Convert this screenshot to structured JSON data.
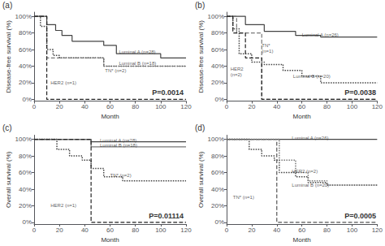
{
  "chart_data": [
    {
      "type": "line",
      "title": "(a)",
      "xlabel": "Month",
      "ylabel": "Disease-free survival (%)",
      "xlim": [
        0,
        120
      ],
      "ylim": [
        -2,
        105
      ],
      "xticks": [
        0,
        20,
        40,
        60,
        80,
        100,
        120
      ],
      "yticks": [
        {
          "value": 0,
          "label": "0%"
        },
        {
          "value": 20,
          "label": "20%"
        },
        {
          "value": 40,
          "label": "40%"
        },
        {
          "value": 60,
          "label": "60%"
        },
        {
          "value": 80,
          "label": "80%"
        },
        {
          "value": 100,
          "label": "100%"
        }
      ],
      "grid": false,
      "series": [
        {
          "color": "#444444",
          "line_style": "solid",
          "x": [
            0,
            10,
            10,
            17,
            17,
            22,
            22,
            30,
            30,
            55,
            55,
            65,
            65,
            100,
            100,
            120
          ],
          "values": [
            100,
            100,
            90,
            90,
            83,
            83,
            77,
            77,
            70,
            70,
            65,
            65,
            55,
            55,
            50,
            50
          ]
        },
        {
          "color": "#444444",
          "line_style": "dotted",
          "x": [
            0,
            5,
            5,
            10,
            10,
            15,
            15,
            20,
            20,
            55,
            55,
            120
          ],
          "values": [
            100,
            100,
            88,
            88,
            60,
            60,
            53,
            53,
            50,
            50,
            40,
            40
          ]
        },
        {
          "color": "#777777",
          "line_style": "dashed",
          "x": [
            0,
            10,
            10,
            55,
            55,
            120
          ],
          "values": [
            100,
            100,
            50,
            50,
            40,
            40
          ]
        },
        {
          "color": "#222222",
          "line_style": "dashed",
          "x": [
            0,
            10,
            10,
            120
          ],
          "values": [
            100,
            100,
            0,
            0
          ]
        }
      ],
      "annotations": [
        {
          "text": "Luminal A (n=28)",
          "x": 67,
          "y": 57
        },
        {
          "text": "Luminal B (n=18)",
          "x": 67,
          "y": 43
        },
        {
          "text": "TN* (n=2)",
          "x": 56,
          "y": 35
        },
        {
          "text": "HER2 (n=1)",
          "x": 13,
          "y": 20
        },
        {
          "text": "P=0.0014"
        }
      ]
    },
    {
      "type": "line",
      "title": "(b)",
      "xlabel": "Month",
      "ylabel": "Disease-free survival (%)",
      "xlim": [
        0,
        120
      ],
      "ylim": [
        -2,
        105
      ],
      "xticks": [
        0,
        20,
        40,
        60,
        80,
        100,
        120
      ],
      "yticks": [
        {
          "value": 0,
          "label": "0%"
        },
        {
          "value": 20,
          "label": "20%"
        },
        {
          "value": 40,
          "label": "40%"
        },
        {
          "value": 60,
          "label": "60%"
        },
        {
          "value": 80,
          "label": "80%"
        },
        {
          "value": 100,
          "label": "100%"
        }
      ],
      "grid": false,
      "series": [
        {
          "color": "#444444",
          "line_style": "solid",
          "x": [
            0,
            15,
            15,
            30,
            30,
            55,
            55,
            75,
            75,
            120
          ],
          "values": [
            100,
            100,
            90,
            90,
            82,
            82,
            77,
            77,
            75,
            75
          ]
        },
        {
          "color": "#444444",
          "line_style": "dotted",
          "x": [
            0,
            5,
            5,
            10,
            10,
            20,
            20,
            30,
            30,
            45,
            45,
            60,
            60,
            75,
            75,
            120
          ],
          "values": [
            100,
            100,
            85,
            85,
            55,
            55,
            45,
            45,
            42,
            42,
            35,
            35,
            28,
            28,
            20,
            20
          ]
        },
        {
          "color": "#777777",
          "line_style": "dashed",
          "x": [
            0,
            8,
            8,
            28,
            28,
            120
          ],
          "values": [
            100,
            100,
            80,
            80,
            0,
            0
          ]
        },
        {
          "color": "#222222",
          "line_style": "dashed",
          "x": [
            0,
            5,
            5,
            15,
            15,
            28,
            28,
            120
          ],
          "values": [
            100,
            100,
            80,
            80,
            50,
            50,
            0,
            0
          ]
        }
      ],
      "annotations": [
        {
          "text": "Luminal A (n=26)",
          "x": 60,
          "y": 78
        },
        {
          "text": "TN*",
          "x": 28,
          "y": 65
        },
        {
          "text": "(n=1)",
          "x": 28,
          "y": 58
        },
        {
          "text": "HER2",
          "x": 3,
          "y": 37
        },
        {
          "text": "(n=2)",
          "x": 3,
          "y": 30
        },
        {
          "text": "Luminal B (n=20)",
          "x": 53,
          "y": 28
        },
        {
          "text": "P=0.0038"
        }
      ]
    },
    {
      "type": "line",
      "title": "(c)",
      "xlabel": "Month",
      "ylabel": "Overall survival (%)",
      "xlim": [
        0,
        120
      ],
      "ylim": [
        -2,
        105
      ],
      "xticks": [
        0,
        20,
        40,
        60,
        80,
        100,
        120
      ],
      "yticks": [
        {
          "value": 0,
          "label": "0%"
        },
        {
          "value": 20,
          "label": "20%"
        },
        {
          "value": 40,
          "label": "40%"
        },
        {
          "value": 60,
          "label": "60%"
        },
        {
          "value": 80,
          "label": "80%"
        },
        {
          "value": 100,
          "label": "100%"
        }
      ],
      "grid": false,
      "series": [
        {
          "color": "#444444",
          "line_style": "solid",
          "x": [
            0,
            45,
            45,
            120
          ],
          "values": [
            100,
            100,
            97,
            97
          ]
        },
        {
          "color": "#777777",
          "line_style": "solid",
          "x": [
            0,
            45,
            45,
            120
          ],
          "values": [
            100,
            100,
            91,
            91
          ]
        },
        {
          "color": "#444444",
          "line_style": "dotted",
          "x": [
            0,
            18,
            18,
            28,
            28,
            38,
            38,
            45,
            45,
            55,
            55,
            70,
            70,
            120
          ],
          "values": [
            100,
            100,
            88,
            88,
            80,
            80,
            75,
            75,
            65,
            65,
            55,
            55,
            50,
            50
          ]
        },
        {
          "color": "#222222",
          "line_style": "dashed",
          "x": [
            0,
            45,
            45,
            120
          ],
          "values": [
            100,
            100,
            0,
            0
          ]
        }
      ],
      "annotations": [
        {
          "text": "Luminal A (n=28)",
          "x": 52,
          "y": 99
        },
        {
          "text": "Luminal B (n=18)",
          "x": 52,
          "y": 93
        },
        {
          "text": "TN* (n=2)",
          "x": 60,
          "y": 57
        },
        {
          "text": "HER2 (n=1)",
          "x": 13,
          "y": 20
        },
        {
          "text": "P=0.01114"
        }
      ]
    },
    {
      "type": "line",
      "title": "(d)",
      "xlabel": "Month",
      "ylabel": "Overall survival (%)",
      "xlim": [
        0,
        120
      ],
      "ylim": [
        -2,
        105
      ],
      "xticks": [
        0,
        20,
        40,
        60,
        80,
        100,
        120
      ],
      "yticks": [
        {
          "value": 0,
          "label": "0%"
        },
        {
          "value": 20,
          "label": "20%"
        },
        {
          "value": 40,
          "label": "40%"
        },
        {
          "value": 60,
          "label": "60%"
        },
        {
          "value": 80,
          "label": "80%"
        },
        {
          "value": 100,
          "label": "100%"
        }
      ],
      "grid": false,
      "series": [
        {
          "color": "#444444",
          "line_style": "solid",
          "x": [
            0,
            120
          ],
          "values": [
            100,
            100
          ]
        },
        {
          "color": "#444444",
          "line_style": "dotted",
          "x": [
            0,
            18,
            18,
            28,
            28,
            38,
            38,
            42,
            42,
            55,
            55,
            65,
            65,
            80,
            80,
            120
          ],
          "values": [
            100,
            100,
            88,
            88,
            80,
            80,
            75,
            75,
            60,
            60,
            55,
            55,
            48,
            48,
            45,
            45
          ]
        },
        {
          "color": "#555555",
          "line_style": "dashed",
          "x": [
            0,
            40,
            40,
            120
          ],
          "values": [
            100,
            100,
            0,
            0
          ]
        },
        {
          "color": "#777777",
          "line_style": "dotted",
          "x": [
            0,
            42,
            42,
            55,
            55,
            65,
            65,
            80,
            80,
            120
          ],
          "values": [
            100,
            100,
            75,
            75,
            60,
            60,
            50,
            50,
            45,
            45
          ]
        }
      ],
      "annotations": [
        {
          "text": "Luminal A (n=26)",
          "x": 52,
          "y": 102
        },
        {
          "text": "HER2 (n=2)",
          "x": 52,
          "y": 62
        },
        {
          "text": "TN* (n=1)",
          "x": 5,
          "y": 30
        },
        {
          "text": "Luminal B (n=20)",
          "x": 52,
          "y": 45
        },
        {
          "text": "P=0.0005"
        }
      ]
    }
  ]
}
